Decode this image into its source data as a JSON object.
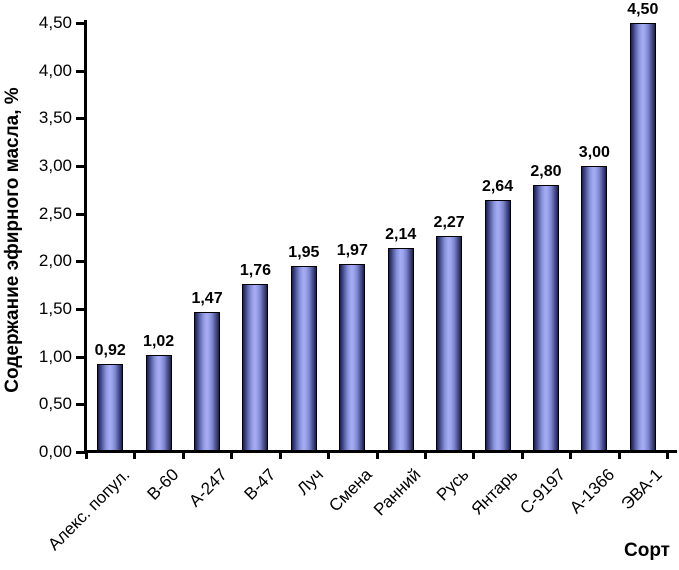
{
  "chart_data": {
    "type": "bar",
    "title": "",
    "xlabel": "Сорт",
    "ylabel": "Содержание эфирного масла, %",
    "categories": [
      "Алекс. попул.",
      "В-60",
      "А-247",
      "В-47",
      "Луч",
      "Смена",
      "Ранний",
      "Русь",
      "Янтарь",
      "С-9197",
      "А-1366",
      "ЭВА-1"
    ],
    "values": [
      0.92,
      1.02,
      1.47,
      1.76,
      1.95,
      1.97,
      2.14,
      2.27,
      2.64,
      2.8,
      3.0,
      4.5
    ],
    "data_labels": [
      "0,92",
      "1,02",
      "1,47",
      "1,76",
      "1,95",
      "1,97",
      "2,14",
      "2,27",
      "2,64",
      "2,80",
      "3,00",
      "4,50"
    ],
    "y_tick_labels": [
      "0,00",
      "0,50",
      "1,00",
      "1,50",
      "2,00",
      "2,50",
      "3,00",
      "3,50",
      "4,00",
      "4,50"
    ],
    "ylim": [
      0,
      4.5
    ],
    "y_step": 0.5,
    "grid": false,
    "legend": false,
    "decimal_separator": ",",
    "colors": {
      "background": "#ffffff",
      "text": "#000000",
      "axis": "#000000",
      "bar_edge_dark": "#1b2150",
      "bar_dark": "#2e3573",
      "bar_mid": "#8c94de",
      "bar_light": "#a6adf2",
      "bar_outline": "#000000"
    }
  }
}
